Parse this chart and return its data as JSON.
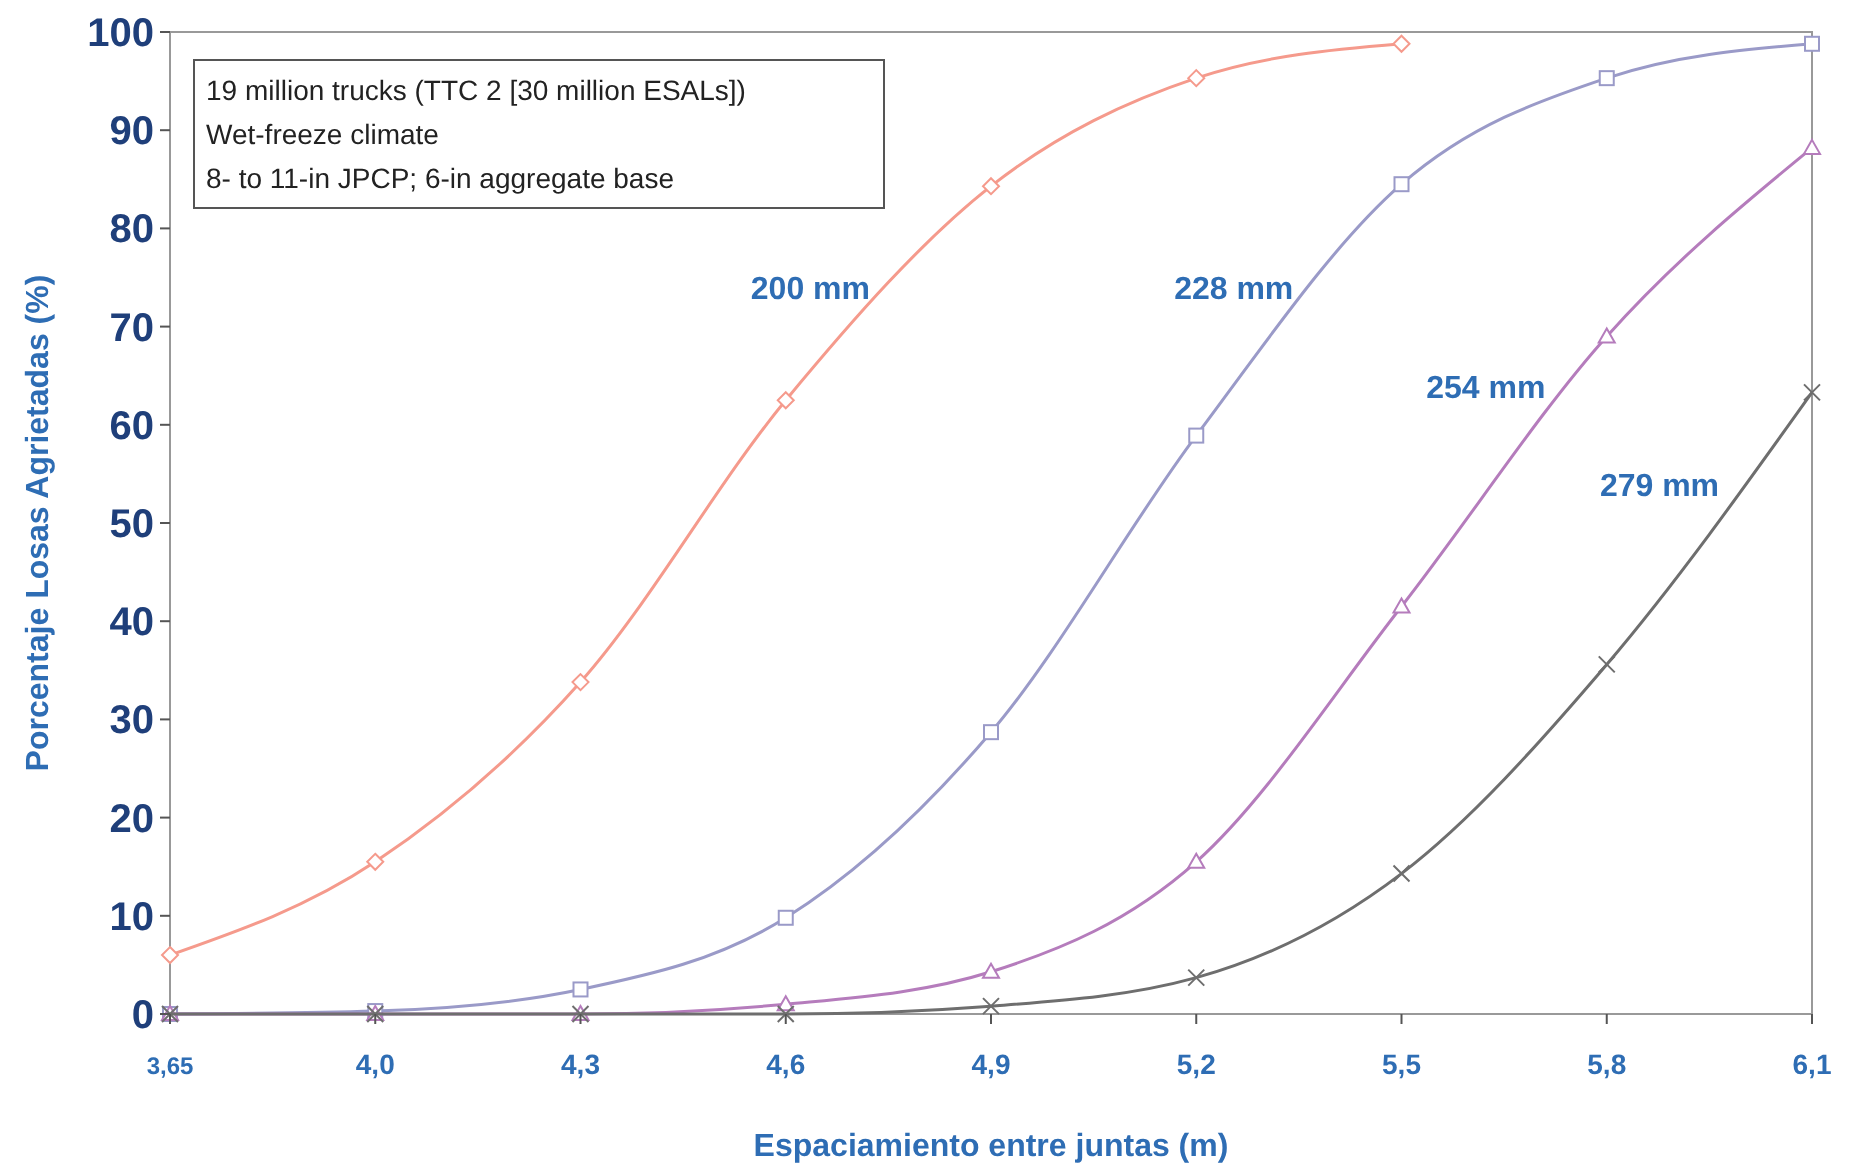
{
  "chart_data": {
    "type": "line",
    "xlabel": "Espaciamiento entre juntas (m)",
    "ylabel": "Porcentaje Losas Agrietadas (%)",
    "categories": [
      "3,65",
      "4,0",
      "4,3",
      "4,6",
      "4,9",
      "5,2",
      "5,5",
      "5,8",
      "6,1"
    ],
    "ylim": [
      0,
      100
    ],
    "yticks": [
      0,
      10,
      20,
      30,
      40,
      50,
      60,
      70,
      80,
      90,
      100
    ],
    "grid": false,
    "annotations": [
      "19 million trucks (TTC 2 [30 million ESALs])",
      "Wet-freeze climate",
      "8- to 11-in JPCP; 6-in aggregate base"
    ],
    "series": [
      {
        "name": "200 mm",
        "color": "#f59a8c",
        "marker": "diamond",
        "values": [
          6,
          15.5,
          33.8,
          62.5,
          84.3,
          95.3,
          98.8,
          null,
          null
        ]
      },
      {
        "name": "228 mm",
        "color": "#9a9ac8",
        "marker": "square",
        "values": [
          0,
          0.3,
          2.5,
          9.8,
          28.7,
          58.9,
          84.5,
          95.3,
          98.8
        ]
      },
      {
        "name": "254 mm",
        "color": "#b57cbc",
        "marker": "triangle",
        "values": [
          0,
          0,
          0,
          1,
          4.3,
          15.5,
          41.5,
          69,
          88.2
        ]
      },
      {
        "name": "279 mm",
        "color": "#6e6e6e",
        "marker": "cross",
        "values": [
          0,
          0,
          0,
          0,
          0.8,
          3.7,
          14.3,
          35.6,
          63.3
        ]
      }
    ]
  }
}
